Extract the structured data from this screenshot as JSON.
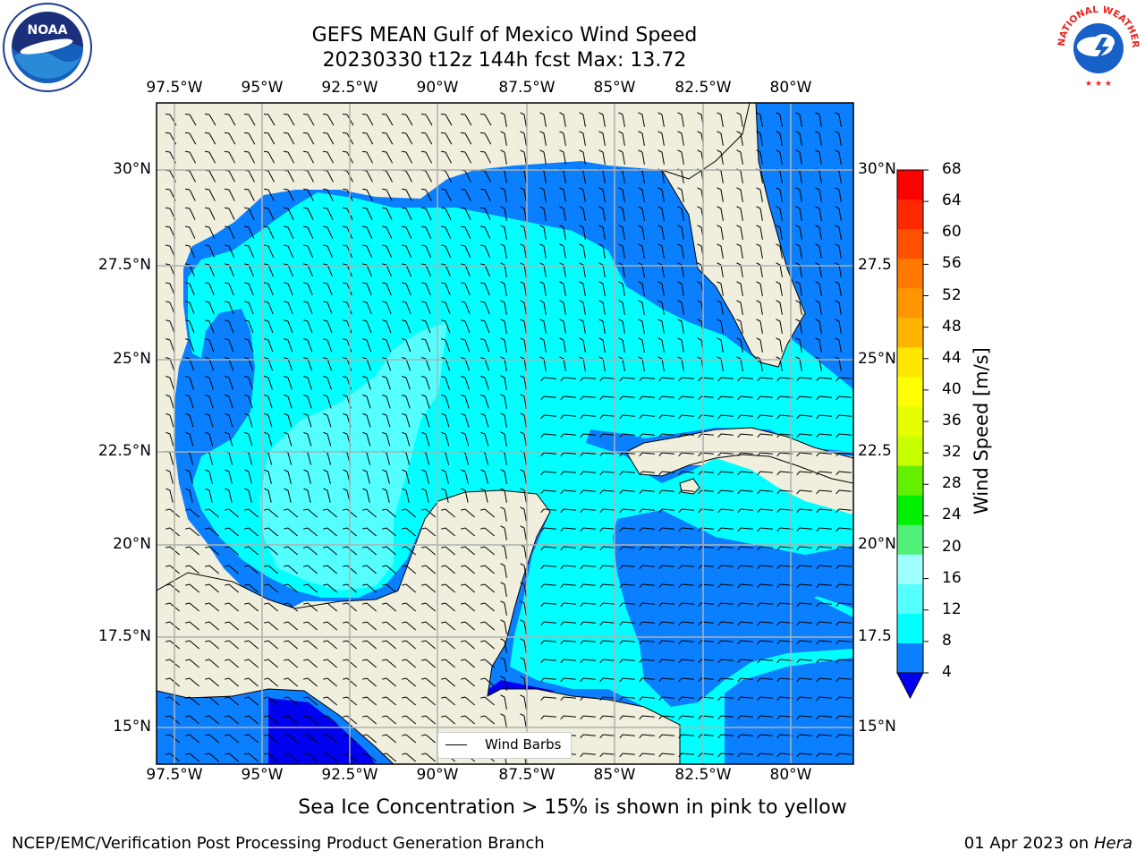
{
  "title": {
    "line1": "GEFS MEAN Gulf of Mexico Wind Speed",
    "line2": "20230330 t12z 144h fcst   Max: 13.72"
  },
  "map": {
    "x_ticks": [
      "97.5°W",
      "95°W",
      "92.5°W",
      "90°W",
      "87.5°W",
      "85°W",
      "82.5°W",
      "80°W"
    ],
    "y_ticks": [
      "30°N",
      "27.5°N",
      "25°N",
      "22.5°N",
      "20°N",
      "17.5°N",
      "15°N"
    ],
    "y_ticks_right": [
      "30°N",
      "27.5",
      "25°N",
      "22.5",
      "20°N",
      "17.5",
      "15°N"
    ],
    "legend_label": "Wind Barbs",
    "colors": {
      "land": "#f0eedc",
      "level_4_8": "#0a7fff",
      "level_8_12": "#00ffff",
      "level_12_16": "#55ffff",
      "below_4": "#0000f0"
    }
  },
  "colorbar": {
    "label": "Wind Speed [m/s]",
    "ticks": [
      "68",
      "64",
      "60",
      "56",
      "52",
      "48",
      "44",
      "40",
      "36",
      "32",
      "28",
      "24",
      "20",
      "16",
      "12",
      "8",
      "4"
    ],
    "colors": [
      "#ff0000",
      "#ff2800",
      "#ff5000",
      "#ff7800",
      "#ff9600",
      "#ffb400",
      "#ffe600",
      "#ffff00",
      "#e6ff00",
      "#c8ff00",
      "#64f000",
      "#00f000",
      "#50f078",
      "#a0ffff",
      "#55ffff",
      "#00ffff",
      "#0a7fff"
    ],
    "extend_color": "#0000f0"
  },
  "subtitle": "Sea Ice Concentration > 15% is shown in pink to yellow",
  "footer": {
    "left": "NCEP/EMC/Verification Post Processing Product Generation Branch",
    "right_date": "01 Apr 2023 on ",
    "right_host": "Hera"
  },
  "logos": {
    "noaa_text": "NOAA",
    "nws_text": "NATIONAL WEATHER SERVICE"
  }
}
